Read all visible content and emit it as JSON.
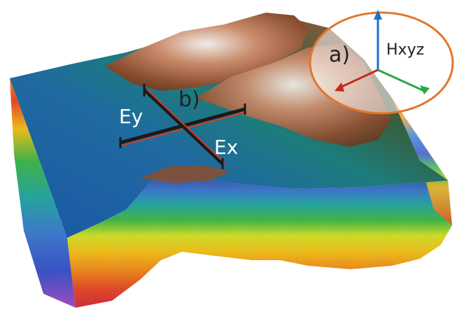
{
  "figure": {
    "labels": {
      "a": "a)",
      "b": "b)",
      "ey": "Ey",
      "ex": "Ex",
      "hxyz": "Hxyz"
    },
    "colors": {
      "ocean_deep": "#1e5aa8",
      "ocean_shallow": "#1f7f86",
      "land_low": "#3f5f3c",
      "land_high": "#9a5a3a",
      "snow": "#e9e4e0",
      "callout_ring": "#e2762c",
      "electrode_red": "#d23a2a",
      "electrode_dark": "#1a1a1a",
      "axis_blue": "#1f6fc7",
      "axis_green": "#2aa64a",
      "axis_red": "#c22a22"
    },
    "layer_colors": [
      "#e94b2a",
      "#f08a1f",
      "#f4c21a",
      "#d7e22a",
      "#41b74a",
      "#26a7a6",
      "#3a84d4",
      "#3b55c9",
      "#a24fc5"
    ]
  }
}
